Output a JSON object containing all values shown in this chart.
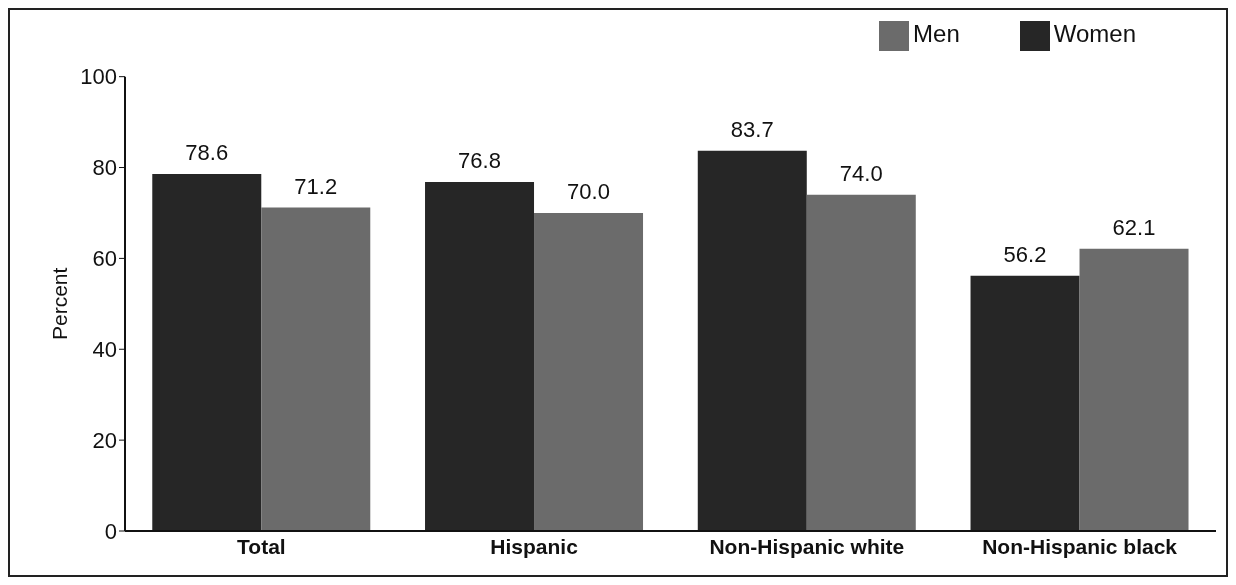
{
  "chart_data": {
    "type": "bar",
    "ylabel": "Percent",
    "categories": [
      "Total",
      "Hispanic",
      "Non-Hispanic white",
      "Non-Hispanic black"
    ],
    "series": [
      {
        "name": "Women",
        "color": "#262626",
        "values": [
          78.6,
          76.8,
          83.7,
          56.2
        ],
        "value_labels": [
          "78.6",
          "76.8",
          "83.7",
          "56.2"
        ]
      },
      {
        "name": "Men",
        "color": "#6b6b6b",
        "values": [
          71.2,
          70.0,
          74.0,
          62.1
        ],
        "value_labels": [
          "71.2",
          "70.0",
          "74.0",
          "62.1"
        ]
      }
    ],
    "ylim": [
      0,
      100
    ],
    "yticks": [
      0,
      20,
      40,
      60,
      80,
      100
    ],
    "grid": false,
    "legend": "top right"
  }
}
